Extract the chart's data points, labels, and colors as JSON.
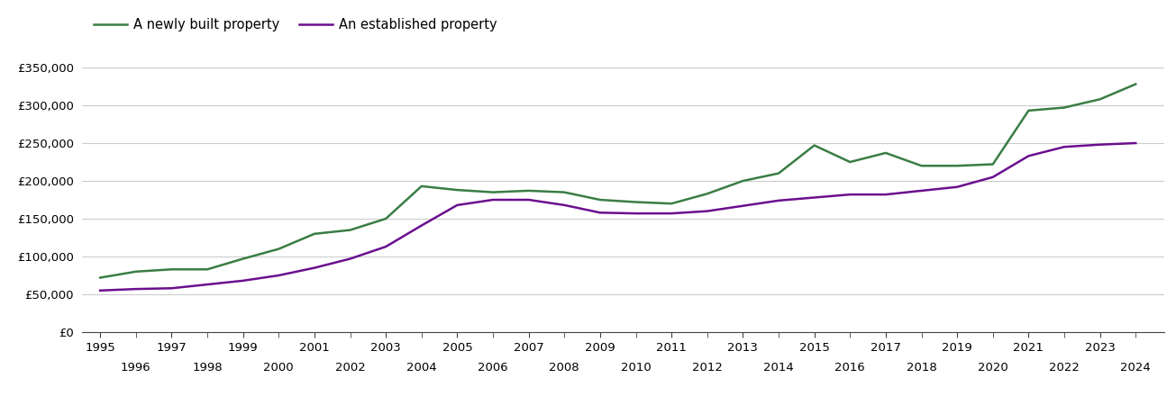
{
  "years": [
    1995,
    1996,
    1997,
    1998,
    1999,
    2000,
    2001,
    2002,
    2003,
    2004,
    2005,
    2006,
    2007,
    2008,
    2009,
    2010,
    2011,
    2012,
    2013,
    2014,
    2015,
    2016,
    2017,
    2018,
    2019,
    2020,
    2021,
    2022,
    2023,
    2024
  ],
  "new_build": [
    72000,
    80000,
    83000,
    83000,
    97000,
    110000,
    130000,
    135000,
    150000,
    193000,
    188000,
    185000,
    187000,
    185000,
    175000,
    172000,
    170000,
    183000,
    200000,
    210000,
    247000,
    225000,
    237000,
    220000,
    220000,
    222000,
    293000,
    297000,
    308000,
    328000
  ],
  "established": [
    55000,
    57000,
    58000,
    63000,
    68000,
    75000,
    85000,
    97000,
    113000,
    141000,
    168000,
    175000,
    175000,
    168000,
    158000,
    157000,
    157000,
    160000,
    167000,
    174000,
    178000,
    182000,
    182000,
    187000,
    192000,
    205000,
    233000,
    245000,
    248000,
    250000
  ],
  "new_build_color": "#3a7d44",
  "established_color": "#6a0f8e",
  "new_build_label": "A newly built property",
  "established_label": "An established property",
  "ylim": [
    0,
    375000
  ],
  "yticks": [
    0,
    50000,
    100000,
    150000,
    200000,
    250000,
    300000,
    350000
  ],
  "background_color": "#ffffff",
  "grid_color": "#cccccc",
  "line_width": 1.8
}
